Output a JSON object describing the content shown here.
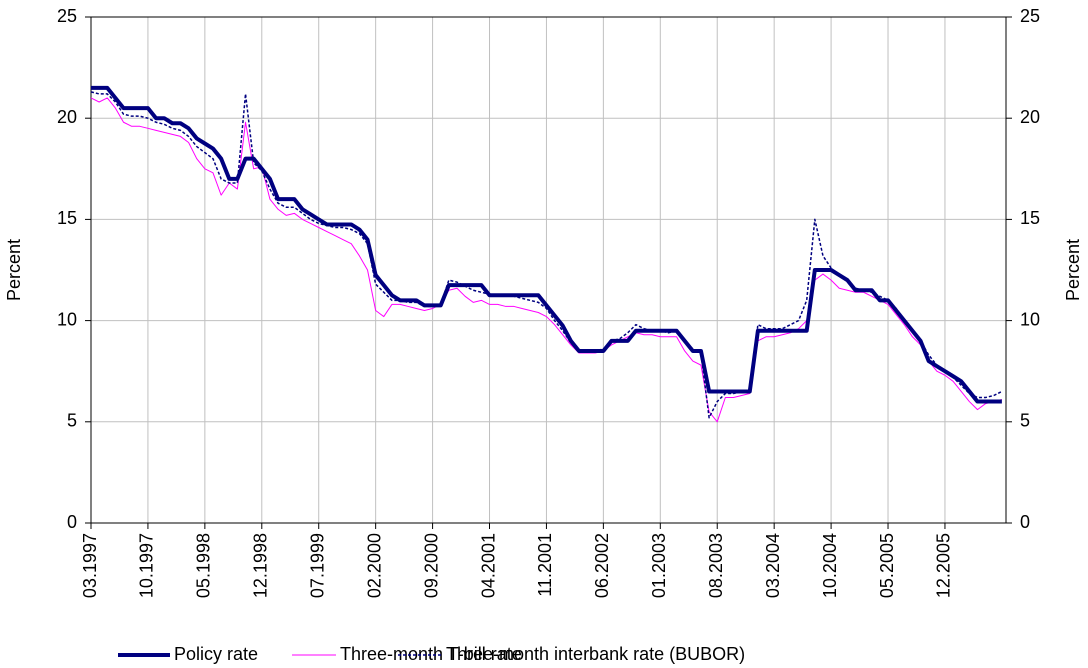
{
  "chart_data": {
    "type": "line",
    "ylabel": "Percent",
    "y2label": "Percent",
    "categories": [
      "03.1997",
      null,
      null,
      null,
      null,
      null,
      null,
      "10.1997",
      null,
      null,
      null,
      null,
      null,
      null,
      "05.1998",
      null,
      null,
      null,
      null,
      null,
      null,
      "12.1998",
      null,
      null,
      null,
      null,
      null,
      null,
      "07.1999",
      null,
      null,
      null,
      null,
      null,
      null,
      "02.2000",
      null,
      null,
      null,
      null,
      null,
      null,
      "09.2000",
      null,
      null,
      null,
      null,
      null,
      null,
      "04.2001",
      null,
      null,
      null,
      null,
      null,
      null,
      "11.2001",
      null,
      null,
      null,
      null,
      null,
      null,
      "06.2002",
      null,
      null,
      null,
      null,
      null,
      null,
      "01.2003",
      null,
      null,
      null,
      null,
      null,
      null,
      "08.2003",
      null,
      null,
      null,
      null,
      null,
      null,
      "03.2004",
      null,
      null,
      null,
      null,
      null,
      null,
      "10.2004",
      null,
      null,
      null,
      null,
      null,
      null,
      "05.2005",
      null,
      null,
      null,
      null,
      null,
      null,
      "12.2005",
      null,
      null,
      null,
      null,
      null,
      null,
      null
    ],
    "series": [
      {
        "name": "Policy rate",
        "color": "#000080",
        "values": [
          21.5,
          21.5,
          21.5,
          21,
          20.5,
          20.5,
          20.5,
          20.5,
          20,
          20,
          19.75,
          19.75,
          19.5,
          19,
          18.75,
          18.5,
          18,
          17,
          17,
          18,
          18,
          17.5,
          17,
          16,
          16,
          16,
          15.5,
          15.25,
          15,
          14.75,
          14.75,
          14.75,
          14.75,
          14.5,
          14,
          12.25,
          11.75,
          11.25,
          11,
          11,
          11,
          10.75,
          10.75,
          10.75,
          11.75,
          11.75,
          11.75,
          11.75,
          11.75,
          11.25,
          11.25,
          11.25,
          11.25,
          11.25,
          11.25,
          11.25,
          10.75,
          10.25,
          9.75,
          9,
          8.5,
          8.5,
          8.5,
          8.5,
          9,
          9,
          9,
          9.5,
          9.5,
          9.5,
          9.5,
          9.5,
          9.5,
          9,
          8.5,
          8.5,
          6.5,
          6.5,
          6.5,
          6.5,
          6.5,
          6.5,
          9.5,
          9.5,
          9.5,
          9.5,
          9.5,
          9.5,
          9.5,
          12.5,
          12.5,
          12.5,
          12.25,
          12,
          11.5,
          11.5,
          11.5,
          11,
          11,
          10.5,
          10,
          9.5,
          9,
          8,
          7.75,
          7.5,
          7.25,
          7,
          6.5,
          6,
          6,
          6,
          6
        ]
      },
      {
        "name": "Three-month T-bill rate",
        "color": "#ff00ff",
        "values": [
          21.0,
          20.8,
          21.0,
          20.5,
          19.8,
          19.6,
          19.6,
          19.5,
          19.4,
          19.3,
          19.2,
          19.1,
          18.8,
          18.0,
          17.5,
          17.3,
          16.2,
          16.8,
          16.5,
          19.8,
          17.5,
          17.6,
          16.0,
          15.5,
          15.2,
          15.3,
          15.0,
          14.8,
          14.6,
          14.4,
          14.2,
          14.0,
          13.8,
          13.2,
          12.5,
          10.5,
          10.2,
          10.8,
          10.8,
          10.7,
          10.6,
          10.5,
          10.6,
          10.8,
          11.5,
          11.6,
          11.2,
          10.9,
          11.0,
          10.8,
          10.8,
          10.7,
          10.7,
          10.6,
          10.5,
          10.4,
          10.2,
          9.8,
          9.3,
          8.8,
          8.4,
          8.4,
          8.4,
          8.5,
          8.8,
          9.0,
          9.2,
          9.4,
          9.3,
          9.3,
          9.2,
          9.2,
          9.2,
          8.5,
          8.0,
          7.8,
          5.5,
          5.0,
          6.2,
          6.2,
          6.3,
          6.4,
          9.0,
          9.2,
          9.2,
          9.3,
          9.4,
          9.6,
          10.0,
          12.0,
          12.3,
          12.0,
          11.6,
          11.5,
          11.4,
          11.4,
          11.2,
          11.0,
          10.8,
          10.3,
          9.8,
          9.2,
          8.8,
          8.0,
          7.5,
          7.3,
          7.0,
          6.5,
          6.0,
          5.6,
          5.9,
          6.0,
          6.1
        ]
      },
      {
        "name": "Three-month interbank rate (BUBOR)",
        "color": "#000080",
        "values": [
          21.3,
          21.2,
          21.2,
          20.8,
          20.2,
          20.1,
          20.1,
          20.0,
          19.8,
          19.7,
          19.5,
          19.4,
          19.1,
          18.6,
          18.3,
          18.0,
          17.0,
          16.8,
          16.8,
          21.2,
          17.8,
          17.4,
          16.5,
          15.8,
          15.6,
          15.6,
          15.3,
          15.0,
          14.8,
          14.7,
          14.6,
          14.6,
          14.5,
          14.3,
          13.8,
          11.8,
          11.4,
          11.0,
          11.0,
          10.9,
          10.9,
          10.7,
          10.7,
          10.8,
          12.0,
          11.9,
          11.7,
          11.5,
          11.4,
          11.3,
          11.2,
          11.2,
          11.2,
          11.1,
          11.0,
          10.9,
          10.6,
          10.0,
          9.5,
          8.9,
          8.5,
          8.5,
          8.5,
          8.6,
          9.0,
          9.1,
          9.4,
          9.8,
          9.6,
          9.5,
          9.5,
          9.4,
          9.5,
          9.0,
          8.6,
          8.4,
          5.2,
          6.0,
          6.4,
          6.4,
          6.5,
          6.5,
          9.8,
          9.6,
          9.6,
          9.6,
          9.8,
          10.0,
          11.0,
          15.0,
          13.2,
          12.6,
          12.2,
          12.0,
          11.6,
          11.5,
          11.4,
          11.2,
          11.0,
          10.6,
          10.0,
          9.5,
          9.0,
          8.3,
          7.8,
          7.5,
          7.2,
          6.8,
          6.4,
          6.2,
          6.2,
          6.3,
          6.5
        ]
      }
    ],
    "ylim": [
      0,
      25
    ],
    "yticks": [
      0,
      5,
      10,
      15,
      20,
      25
    ],
    "y2lim": [
      0,
      25
    ],
    "y2ticks": [
      0,
      5,
      10,
      15,
      20,
      25
    ],
    "grid": true,
    "legend": "bottom"
  }
}
